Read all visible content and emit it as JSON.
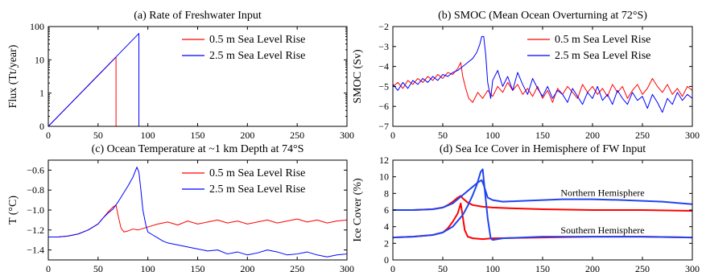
{
  "chart_data": [
    {
      "id": "a",
      "type": "line",
      "title": "(a)  Rate of Freshwater Input",
      "xlabel": "",
      "ylabel": "Flux (Tt/year)",
      "xlim": [
        0,
        300
      ],
      "ylim": [
        0.1,
        100
      ],
      "yscale": "log",
      "xticks": [
        0,
        50,
        100,
        150,
        200,
        250,
        300
      ],
      "yticks": [
        0.1,
        1,
        10,
        100
      ],
      "ytick_labels": [
        "0",
        "1",
        "10",
        "100"
      ],
      "legend": "top-right",
      "series": [
        {
          "name": "0.5 m Sea Level Rise",
          "color": "#ff0000",
          "lw": 1.0,
          "x": [
            0,
            68,
            68.01,
            300
          ],
          "y": [
            0.1,
            12,
            0.1,
            0.1
          ]
        },
        {
          "name": "2.5 m Sea Level Rise",
          "color": "#0000ff",
          "lw": 1.0,
          "x": [
            0,
            91,
            91.01,
            300
          ],
          "y": [
            0.1,
            62,
            0.1,
            0.1
          ]
        }
      ]
    },
    {
      "id": "b",
      "type": "line",
      "title": "(b)  SMOC (Mean Ocean Overturning at 72°S)",
      "xlabel": "",
      "ylabel": "SMOC (Sv)",
      "xlim": [
        0,
        300
      ],
      "ylim": [
        -7,
        -2
      ],
      "xticks": [
        0,
        50,
        100,
        150,
        200,
        250,
        300
      ],
      "yticks": [
        -7,
        -6,
        -5,
        -4,
        -3,
        -2
      ],
      "ytick_labels": [
        "−7",
        "−6",
        "−5",
        "−4",
        "−3",
        "−2"
      ],
      "legend": "top-right",
      "series": [
        {
          "name": "0.5 m Sea Level Rise",
          "color": "#ff0000",
          "lw": 1.0,
          "x": [
            0,
            5,
            10,
            15,
            20,
            25,
            30,
            35,
            40,
            45,
            50,
            55,
            60,
            65,
            68,
            70,
            73,
            76,
            80,
            85,
            90,
            95,
            100,
            105,
            110,
            115,
            120,
            125,
            130,
            135,
            140,
            145,
            150,
            155,
            160,
            165,
            170,
            175,
            180,
            185,
            190,
            195,
            200,
            205,
            210,
            215,
            220,
            225,
            230,
            235,
            240,
            245,
            250,
            255,
            260,
            265,
            270,
            275,
            280,
            285,
            290,
            295,
            300
          ],
          "y": [
            -5.0,
            -4.8,
            -5.1,
            -4.7,
            -4.9,
            -4.6,
            -4.8,
            -4.5,
            -4.7,
            -4.4,
            -4.6,
            -4.3,
            -4.4,
            -4.1,
            -3.8,
            -4.5,
            -5.1,
            -5.6,
            -5.8,
            -5.3,
            -5.6,
            -5.2,
            -5.5,
            -5.0,
            -5.3,
            -4.8,
            -5.2,
            -4.9,
            -5.4,
            -5.1,
            -5.5,
            -5.0,
            -5.6,
            -5.2,
            -5.8,
            -5.1,
            -5.4,
            -5.0,
            -5.3,
            -5.6,
            -4.9,
            -5.3,
            -5.0,
            -5.4,
            -5.1,
            -5.5,
            -4.9,
            -5.3,
            -5.0,
            -5.6,
            -5.2,
            -4.9,
            -5.4,
            -5.1,
            -4.6,
            -5.0,
            -5.3,
            -4.9,
            -5.4,
            -5.1,
            -5.5,
            -5.0,
            -5.2
          ]
        },
        {
          "name": "2.5 m Sea Level Rise",
          "color": "#0000ff",
          "lw": 1.0,
          "x": [
            0,
            5,
            10,
            15,
            20,
            25,
            30,
            35,
            40,
            45,
            50,
            55,
            60,
            65,
            70,
            75,
            80,
            84,
            87,
            89,
            91,
            93,
            95,
            98,
            100,
            105,
            110,
            115,
            120,
            125,
            130,
            135,
            140,
            145,
            150,
            155,
            160,
            165,
            170,
            175,
            180,
            185,
            190,
            195,
            200,
            205,
            210,
            215,
            220,
            225,
            230,
            235,
            240,
            245,
            250,
            255,
            260,
            265,
            270,
            275,
            280,
            285,
            290,
            295,
            300
          ],
          "y": [
            -4.9,
            -5.2,
            -4.8,
            -5.1,
            -4.7,
            -4.9,
            -4.6,
            -4.8,
            -4.5,
            -4.7,
            -4.4,
            -4.5,
            -4.3,
            -4.2,
            -4.0,
            -3.8,
            -3.6,
            -3.3,
            -2.9,
            -2.5,
            -2.5,
            -3.4,
            -4.8,
            -5.6,
            -4.7,
            -4.2,
            -5.0,
            -4.5,
            -5.2,
            -4.3,
            -4.9,
            -5.4,
            -4.6,
            -5.1,
            -5.5,
            -5.0,
            -5.6,
            -5.2,
            -5.4,
            -5.8,
            -5.1,
            -5.5,
            -5.9,
            -5.3,
            -5.6,
            -5.0,
            -5.7,
            -5.4,
            -5.9,
            -5.2,
            -5.6,
            -5.9,
            -5.3,
            -5.7,
            -5.5,
            -6.1,
            -5.4,
            -5.8,
            -6.3,
            -5.6,
            -5.9,
            -5.3,
            -5.7,
            -5.4,
            -5.6
          ]
        }
      ]
    },
    {
      "id": "c",
      "type": "line",
      "title": "(c)  Ocean Temperature at ~1 km Depth at 74°S",
      "xlabel": "",
      "ylabel": "T (°C)",
      "xlim": [
        0,
        300
      ],
      "ylim": [
        -1.5,
        -0.5
      ],
      "xticks": [
        0,
        50,
        100,
        150,
        200,
        250,
        300
      ],
      "yticks": [
        -1.4,
        -1.2,
        -1.0,
        -0.8,
        -0.6
      ],
      "ytick_labels": [
        "−1.4",
        "−1.2",
        "−1.0",
        "−0.8",
        "−0.6"
      ],
      "legend": "top-right",
      "series": [
        {
          "name": "0.5 m Sea Level Rise",
          "color": "#ff0000",
          "lw": 1.0,
          "x": [
            0,
            10,
            20,
            30,
            40,
            50,
            55,
            60,
            65,
            68,
            70,
            73,
            76,
            80,
            85,
            90,
            100,
            110,
            120,
            130,
            140,
            150,
            160,
            170,
            180,
            190,
            200,
            210,
            220,
            230,
            240,
            250,
            260,
            270,
            280,
            290,
            300
          ],
          "y": [
            -1.27,
            -1.27,
            -1.26,
            -1.24,
            -1.2,
            -1.14,
            -1.08,
            -1.02,
            -0.97,
            -0.95,
            -1.05,
            -1.18,
            -1.22,
            -1.21,
            -1.19,
            -1.2,
            -1.17,
            -1.14,
            -1.12,
            -1.15,
            -1.11,
            -1.14,
            -1.12,
            -1.1,
            -1.13,
            -1.11,
            -1.14,
            -1.12,
            -1.1,
            -1.13,
            -1.11,
            -1.09,
            -1.12,
            -1.1,
            -1.13,
            -1.11,
            -1.1
          ]
        },
        {
          "name": "2.5 m Sea Level Rise",
          "color": "#0000ff",
          "lw": 1.0,
          "x": [
            0,
            10,
            20,
            30,
            40,
            50,
            55,
            60,
            65,
            70,
            75,
            80,
            85,
            89,
            91,
            93,
            95,
            98,
            100,
            105,
            110,
            115,
            120,
            130,
            140,
            150,
            160,
            170,
            180,
            190,
            200,
            210,
            220,
            230,
            240,
            250,
            260,
            270,
            280,
            290,
            300
          ],
          "y": [
            -1.27,
            -1.27,
            -1.26,
            -1.24,
            -1.2,
            -1.14,
            -1.08,
            -1.03,
            -0.99,
            -0.92,
            -0.84,
            -0.76,
            -0.67,
            -0.57,
            -0.62,
            -0.8,
            -1.0,
            -1.15,
            -1.22,
            -1.25,
            -1.28,
            -1.31,
            -1.33,
            -1.35,
            -1.37,
            -1.39,
            -1.41,
            -1.4,
            -1.44,
            -1.42,
            -1.45,
            -1.43,
            -1.4,
            -1.42,
            -1.45,
            -1.44,
            -1.42,
            -1.45,
            -1.47,
            -1.45,
            -1.44
          ]
        }
      ]
    },
    {
      "id": "d",
      "type": "line",
      "title": "(d)  Sea Ice Cover in Hemisphere of FW Input",
      "xlabel": "",
      "ylabel": "Ice Cover (%)",
      "xlim": [
        0,
        300
      ],
      "ylim": [
        0,
        12
      ],
      "xticks": [
        0,
        50,
        100,
        150,
        200,
        250,
        300
      ],
      "yticks": [
        0,
        2,
        4,
        6,
        8,
        10,
        12
      ],
      "ytick_labels": [
        "0",
        "2",
        "4",
        "6",
        "8",
        "10",
        "12"
      ],
      "annotations": [
        {
          "text": "Northern Hemisphere",
          "x": 168,
          "y": 7.7
        },
        {
          "text": "Southern Hemisphere",
          "x": 168,
          "y": 3.2
        }
      ],
      "series": [
        {
          "name": "",
          "color": "#ff0000",
          "lw": 2.0,
          "x": [
            0,
            20,
            40,
            50,
            55,
            60,
            65,
            68,
            70,
            75,
            80,
            90,
            100,
            120,
            150,
            200,
            250,
            300
          ],
          "y": [
            6.0,
            6.0,
            6.1,
            6.3,
            6.6,
            7.0,
            7.5,
            7.7,
            7.4,
            6.9,
            6.6,
            6.4,
            6.3,
            6.2,
            6.1,
            6.0,
            6.0,
            5.9
          ]
        },
        {
          "name": "",
          "color": "#ff0000",
          "lw": 2.0,
          "x": [
            0,
            20,
            40,
            50,
            55,
            60,
            65,
            68,
            70,
            72,
            75,
            80,
            90,
            100,
            150,
            200,
            250,
            300
          ],
          "y": [
            2.7,
            2.8,
            3.0,
            3.3,
            3.8,
            4.6,
            5.6,
            6.8,
            5.2,
            3.6,
            2.8,
            2.6,
            2.5,
            2.6,
            2.7,
            2.8,
            2.8,
            2.7
          ]
        },
        {
          "name": "",
          "color": "#2244ee",
          "lw": 2.0,
          "x": [
            0,
            20,
            40,
            50,
            60,
            70,
            80,
            85,
            89,
            91,
            95,
            100,
            110,
            130,
            150,
            170,
            200,
            230,
            250,
            270,
            300
          ],
          "y": [
            6.0,
            6.0,
            6.1,
            6.3,
            6.8,
            7.8,
            8.8,
            9.3,
            9.6,
            9.0,
            7.5,
            7.2,
            7.0,
            7.1,
            7.2,
            7.3,
            7.3,
            7.2,
            7.1,
            7.0,
            6.7
          ]
        },
        {
          "name": "",
          "color": "#2244ee",
          "lw": 2.0,
          "x": [
            0,
            20,
            40,
            50,
            60,
            70,
            75,
            80,
            84,
            88,
            90,
            92,
            95,
            98,
            100,
            105,
            110,
            130,
            150,
            200,
            250,
            300
          ],
          "y": [
            2.7,
            2.8,
            3.0,
            3.3,
            4.0,
            5.4,
            6.5,
            7.8,
            9.0,
            10.6,
            10.9,
            8.5,
            5.0,
            2.6,
            2.4,
            2.5,
            2.6,
            2.7,
            2.8,
            2.8,
            2.8,
            2.7
          ]
        }
      ]
    }
  ]
}
